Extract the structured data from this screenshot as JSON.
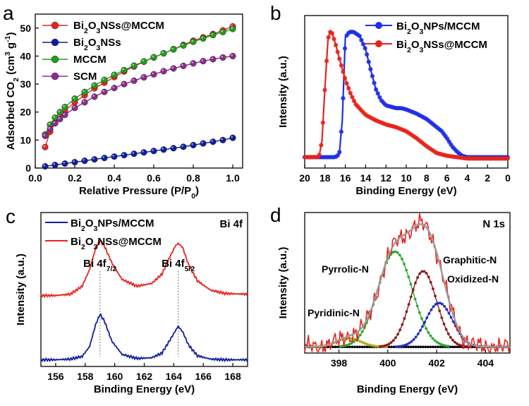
{
  "chart_data": [
    {
      "panel_label": "a",
      "type": "line",
      "xlabel": "Relative Pressure (P/P0)",
      "ylabel": "Adsorbed CO2 (cm3 g-1)",
      "xlim": [
        0,
        1.05
      ],
      "ylim": [
        0,
        55
      ],
      "xticks": [
        0.0,
        0.2,
        0.4,
        0.6,
        0.8,
        1.0
      ],
      "xtick_labels": [
        "0.0",
        "0.2",
        "0.4",
        "0.6",
        "0.8",
        "1.0"
      ],
      "yticks": [
        0,
        10,
        20,
        30,
        40,
        50
      ],
      "ytick_labels": [
        "0",
        "10",
        "20",
        "30",
        "40",
        "50"
      ],
      "legend": "top-left",
      "series": [
        {
          "name": "Bi2O3NSs@MCCM",
          "color": "#e8241c",
          "marker": "dot",
          "x": [
            0.05,
            0.075,
            0.1,
            0.125,
            0.15,
            0.2,
            0.25,
            0.3,
            0.35,
            0.4,
            0.45,
            0.5,
            0.55,
            0.6,
            0.65,
            0.7,
            0.75,
            0.8,
            0.85,
            0.9,
            0.95,
            1.0
          ],
          "y": [
            7.5,
            13,
            16,
            18.5,
            20.5,
            23.5,
            26,
            28.5,
            30.5,
            32.5,
            34.5,
            36.3,
            38,
            39.5,
            41,
            42.5,
            44,
            45.5,
            46.7,
            47.9,
            49.2,
            50.6
          ]
        },
        {
          "name": "Bi2O3NSs",
          "color": "#0d1e9e",
          "marker": "dot",
          "x": [
            0.05,
            0.1,
            0.15,
            0.2,
            0.25,
            0.3,
            0.35,
            0.4,
            0.45,
            0.5,
            0.55,
            0.6,
            0.65,
            0.7,
            0.75,
            0.8,
            0.85,
            0.9,
            0.95,
            1.0
          ],
          "y": [
            0.6,
            1.1,
            1.6,
            2.1,
            2.6,
            3.1,
            3.6,
            4.1,
            4.6,
            5.1,
            5.6,
            6.1,
            6.6,
            7.1,
            7.6,
            8.2,
            8.8,
            9.4,
            10.0,
            10.8
          ]
        },
        {
          "name": "MCCM",
          "color": "#1e9e1e",
          "marker": "dot",
          "x": [
            0.05,
            0.075,
            0.1,
            0.125,
            0.15,
            0.2,
            0.25,
            0.3,
            0.35,
            0.4,
            0.45,
            0.5,
            0.55,
            0.6,
            0.65,
            0.7,
            0.75,
            0.8,
            0.85,
            0.9,
            0.95,
            1.0
          ],
          "y": [
            12,
            15.5,
            18,
            20,
            21.8,
            24.8,
            27.2,
            29.5,
            31.5,
            33.3,
            35,
            36.6,
            38.1,
            39.6,
            41,
            42.4,
            43.8,
            45.1,
            46.3,
            47.5,
            48.6,
            49.7
          ]
        },
        {
          "name": "SCM",
          "color": "#8e2a8e",
          "marker": "dot",
          "x": [
            0.05,
            0.075,
            0.1,
            0.125,
            0.15,
            0.2,
            0.25,
            0.3,
            0.35,
            0.4,
            0.45,
            0.5,
            0.55,
            0.6,
            0.65,
            0.7,
            0.75,
            0.8,
            0.85,
            0.9,
            0.95,
            1.0
          ],
          "y": [
            11.5,
            14,
            16,
            17.5,
            19,
            21.5,
            23.5,
            25.5,
            27.2,
            28.6,
            30,
            31.2,
            32.4,
            33.5,
            34.6,
            35.6,
            36.5,
            37.4,
            38.2,
            38.9,
            39.5,
            40.0
          ]
        }
      ]
    },
    {
      "panel_label": "b",
      "type": "line",
      "xlabel": "Binding Energy (eV)",
      "ylabel": "Intensity (a.u.)",
      "xlim": [
        20,
        0
      ],
      "ylim": [
        0,
        1.12
      ],
      "xticks": [
        20,
        18,
        16,
        14,
        12,
        10,
        8,
        6,
        4,
        2,
        0
      ],
      "xtick_labels": [
        "20",
        "18",
        "16",
        "14",
        "12",
        "10",
        "8",
        "6",
        "4",
        "2",
        "0"
      ],
      "legend": "top-right",
      "series": [
        {
          "name": "Bi2O3NPs/MCCM",
          "color": "#1f2ee8",
          "x": [
            20,
            17.5,
            17,
            16.6,
            16.3,
            16.0,
            15.6,
            15.2,
            14.6,
            14.0,
            13.5,
            13,
            12.5,
            12,
            11.5,
            11,
            10.5,
            10,
            9,
            8,
            7,
            6.5,
            6,
            5.5,
            5,
            4.5,
            4,
            3.5,
            3,
            2,
            1,
            0
          ],
          "y": [
            0.08,
            0.08,
            0.08,
            0.1,
            0.35,
            0.96,
            1.0,
            1.0,
            0.97,
            0.87,
            0.72,
            0.58,
            0.5,
            0.46,
            0.45,
            0.44,
            0.44,
            0.43,
            0.4,
            0.36,
            0.3,
            0.27,
            0.22,
            0.16,
            0.12,
            0.09,
            0.08,
            0.08,
            0.08,
            0.08,
            0.08,
            0.08
          ]
        },
        {
          "name": "Bi2O3NSs@MCCM",
          "color": "#e8241c",
          "x": [
            20,
            19,
            18.6,
            18.3,
            18.0,
            17.7,
            17.5,
            17.3,
            17.0,
            16.5,
            16,
            15.5,
            15,
            14,
            13,
            12,
            11,
            10,
            9,
            8,
            7,
            6,
            5,
            4,
            3,
            2,
            1,
            0
          ],
          "y": [
            0.08,
            0.08,
            0.08,
            0.2,
            0.6,
            0.95,
            1.0,
            0.99,
            0.92,
            0.78,
            0.65,
            0.55,
            0.47,
            0.39,
            0.35,
            0.32,
            0.3,
            0.27,
            0.22,
            0.16,
            0.11,
            0.09,
            0.08,
            0.07,
            0.07,
            0.07,
            0.07,
            0.07
          ]
        }
      ]
    },
    {
      "panel_label": "c",
      "type": "line",
      "xlabel": "Binding Energy (eV)",
      "ylabel": "Intensity (a.u.)",
      "annotation": "Bi 4f",
      "peak_labels": [
        {
          "text": "Bi 4f",
          "sub": "7/2",
          "x": 159.0
        },
        {
          "text": "Bi 4f",
          "sub": "5/2",
          "x": 164.3
        }
      ],
      "xlim": [
        155,
        169
      ],
      "ylim": [
        0,
        2.3
      ],
      "xticks": [
        156,
        158,
        160,
        162,
        164,
        166,
        168
      ],
      "xtick_labels": [
        "156",
        "158",
        "160",
        "162",
        "164",
        "166",
        "168"
      ],
      "legend": "top-left",
      "series": [
        {
          "name": "Bi2O3NPs/MCCM",
          "color": "#0d1e9e",
          "x": [
            155,
            156,
            157,
            157.8,
            158.3,
            158.7,
            159.0,
            159.3,
            159.8,
            160.5,
            161.5,
            162.5,
            163.2,
            163.7,
            164.1,
            164.3,
            164.6,
            165.0,
            165.6,
            166.5,
            167.5,
            169
          ],
          "y": [
            0.1,
            0.1,
            0.11,
            0.15,
            0.3,
            0.62,
            0.78,
            0.68,
            0.38,
            0.18,
            0.12,
            0.13,
            0.2,
            0.38,
            0.53,
            0.6,
            0.52,
            0.32,
            0.16,
            0.11,
            0.1,
            0.1
          ]
        },
        {
          "name": "Bi2O3NSs@MCCM",
          "color": "#e8241c",
          "x": [
            155,
            156,
            157,
            157.8,
            158.3,
            158.7,
            159.0,
            159.3,
            159.8,
            160.5,
            161.5,
            162.5,
            163.2,
            163.7,
            164.1,
            164.3,
            164.6,
            165.0,
            165.6,
            166.5,
            167.5,
            169
          ],
          "y": [
            1.06,
            1.06,
            1.08,
            1.2,
            1.45,
            1.76,
            1.88,
            1.8,
            1.55,
            1.3,
            1.2,
            1.24,
            1.38,
            1.62,
            1.8,
            1.84,
            1.78,
            1.52,
            1.28,
            1.14,
            1.09,
            1.08
          ]
        }
      ]
    },
    {
      "panel_label": "d",
      "type": "line",
      "xlabel": "Binding Energy (eV)",
      "ylabel": "Intensity (a.u.)",
      "annotation": "N 1s",
      "peak_labels": [
        "Pyrrolic-N",
        "Graphitic-N",
        "Oxidized-N",
        "Pyridinic-N"
      ],
      "xlim": [
        396.6,
        405
      ],
      "ylim": [
        0,
        1.15
      ],
      "xticks": [
        398,
        400,
        402,
        404
      ],
      "xtick_labels": [
        "398",
        "400",
        "402",
        "404"
      ],
      "baseline": 0.05,
      "components": [
        {
          "name": "Pyridinic-N",
          "color": "#b0a81e",
          "center": 398.4,
          "height": 0.07,
          "sigma": 0.5
        },
        {
          "name": "Pyrrolic-N",
          "color": "#2ea82e",
          "center": 400.3,
          "height": 0.78,
          "sigma": 0.7
        },
        {
          "name": "Graphitic-N",
          "color": "#8b1a1a",
          "center": 401.45,
          "height": 0.62,
          "sigma": 0.55
        },
        {
          "name": "Oxidized-N",
          "color": "#1f2ec8",
          "center": 402.1,
          "height": 0.36,
          "sigma": 0.55
        }
      ],
      "envelope_color": "#9a9a9a",
      "raw_color": "#e8241c"
    }
  ]
}
